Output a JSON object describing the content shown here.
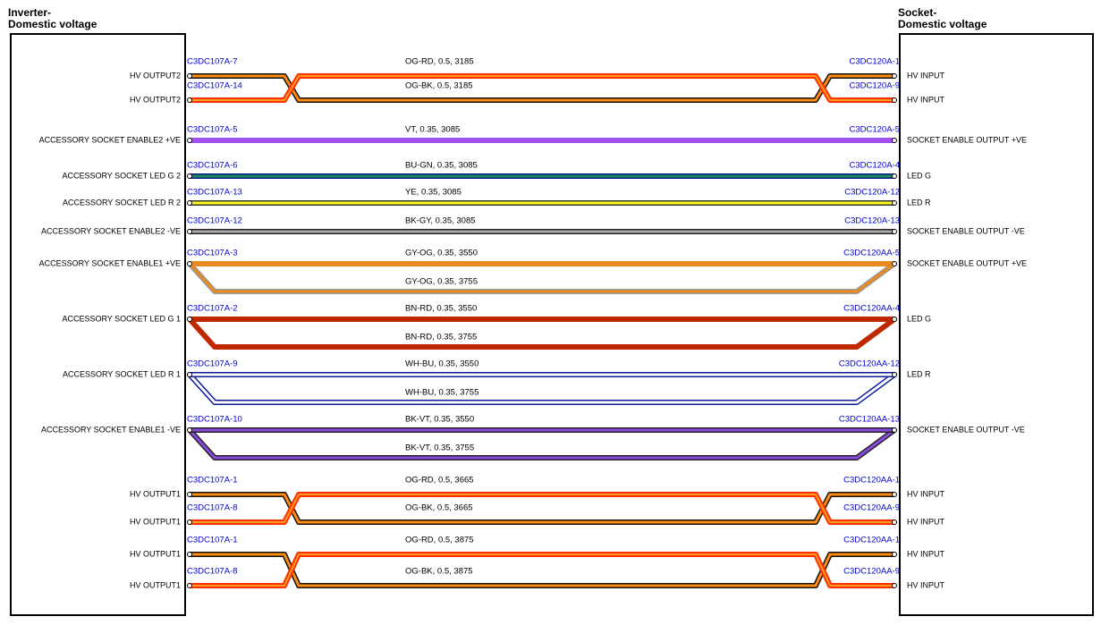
{
  "left_box": {
    "title": [
      "Inverter-",
      "Domestic voltage"
    ]
  },
  "right_box": {
    "title": [
      "Socket-",
      "Domestic voltage"
    ]
  },
  "groups": [
    {
      "wires": [
        {
          "left_label": "HV OUTPUT2",
          "left_pin": "C3DC107A-7",
          "spec": "OG-RD,  0.5,  3185",
          "right_pin": "C3DC120A-1",
          "right_label": "HV INPUT"
        },
        {
          "left_label": "HV OUTPUT2",
          "left_pin": "C3DC107A-14",
          "spec": "OG-BK,  0.5,  3185",
          "right_pin": "C3DC120A-9",
          "right_label": "HV INPUT"
        }
      ]
    },
    {
      "wires": [
        {
          "left_label": "ACCESSORY SOCKET ENABLE2 +VE",
          "left_pin": "C3DC107A-5",
          "spec": "VT,  0.35,  3085",
          "right_pin": "C3DC120A-5",
          "right_label": "SOCKET ENABLE OUTPUT +VE"
        }
      ]
    },
    {
      "wires": [
        {
          "left_label": "ACCESSORY SOCKET LED G 2",
          "left_pin": "C3DC107A-6",
          "spec": "BU-GN,  0.35,  3085",
          "right_pin": "C3DC120A-4",
          "right_label": "LED G"
        }
      ]
    },
    {
      "wires": [
        {
          "left_label": "ACCESSORY SOCKET LED R 2",
          "left_pin": "C3DC107A-13",
          "spec": "YE,  0.35,  3085",
          "right_pin": "C3DC120A-12",
          "right_label": "LED R"
        }
      ]
    },
    {
      "wires": [
        {
          "left_label": "ACCESSORY SOCKET ENABLE2 -VE",
          "left_pin": "C3DC107A-12",
          "spec": "BK-GY,  0.35,  3085",
          "right_pin": "C3DC120A-13",
          "right_label": "SOCKET ENABLE OUTPUT -VE"
        }
      ]
    },
    {
      "wires": [
        {
          "left_label": "ACCESSORY SOCKET ENABLE1 +VE",
          "left_pin": "C3DC107A-3",
          "specs": [
            "GY-OG,  0.35,  3550",
            "GY-OG,  0.35,  3755"
          ],
          "right_pin": "C3DC120AA-5",
          "right_label": "SOCKET ENABLE OUTPUT +VE"
        }
      ]
    },
    {
      "wires": [
        {
          "left_label": "ACCESSORY SOCKET LED G 1",
          "left_pin": "C3DC107A-2",
          "specs": [
            "BN-RD,  0.35,  3550",
            "BN-RD,  0.35,  3755"
          ],
          "right_pin": "C3DC120AA-4",
          "right_label": "LED G"
        }
      ]
    },
    {
      "wires": [
        {
          "left_label": "ACCESSORY SOCKET LED R 1",
          "left_pin": "C3DC107A-9",
          "specs": [
            "WH-BU,  0.35,  3550",
            "WH-BU,  0.35,  3755"
          ],
          "right_pin": "C3DC120AA-12",
          "right_label": "LED R"
        }
      ]
    },
    {
      "wires": [
        {
          "left_label": "ACCESSORY SOCKET ENABLE1 -VE",
          "left_pin": "C3DC107A-10",
          "specs": [
            "BK-VT,  0.35,  3550",
            "BK-VT,  0.35,  3755"
          ],
          "right_pin": "C3DC120AA-13",
          "right_label": "SOCKET ENABLE OUTPUT -VE"
        }
      ]
    },
    {
      "wires": [
        {
          "left_label": "HV OUTPUT1",
          "left_pin": "C3DC107A-1",
          "spec": "OG-RD,  0.5,  3665",
          "right_pin": "C3DC120AA-1",
          "right_label": "HV INPUT"
        },
        {
          "left_label": "HV OUTPUT1",
          "left_pin": "C3DC107A-8",
          "spec": "OG-BK,  0.5,  3665",
          "right_pin": "C3DC120AA-9",
          "right_label": "HV INPUT"
        }
      ]
    },
    {
      "wires": [
        {
          "left_label": "HV OUTPUT1",
          "left_pin": "C3DC107A-1",
          "spec": "OG-RD,  0.5,  3875",
          "right_pin": "C3DC120AA-1",
          "right_label": "HV INPUT"
        },
        {
          "left_label": "HV OUTPUT1",
          "left_pin": "C3DC107A-8",
          "spec": "OG-BK,  0.5,  3875",
          "right_pin": "C3DC120AA-9",
          "right_label": "HV INPUT"
        }
      ]
    }
  ]
}
